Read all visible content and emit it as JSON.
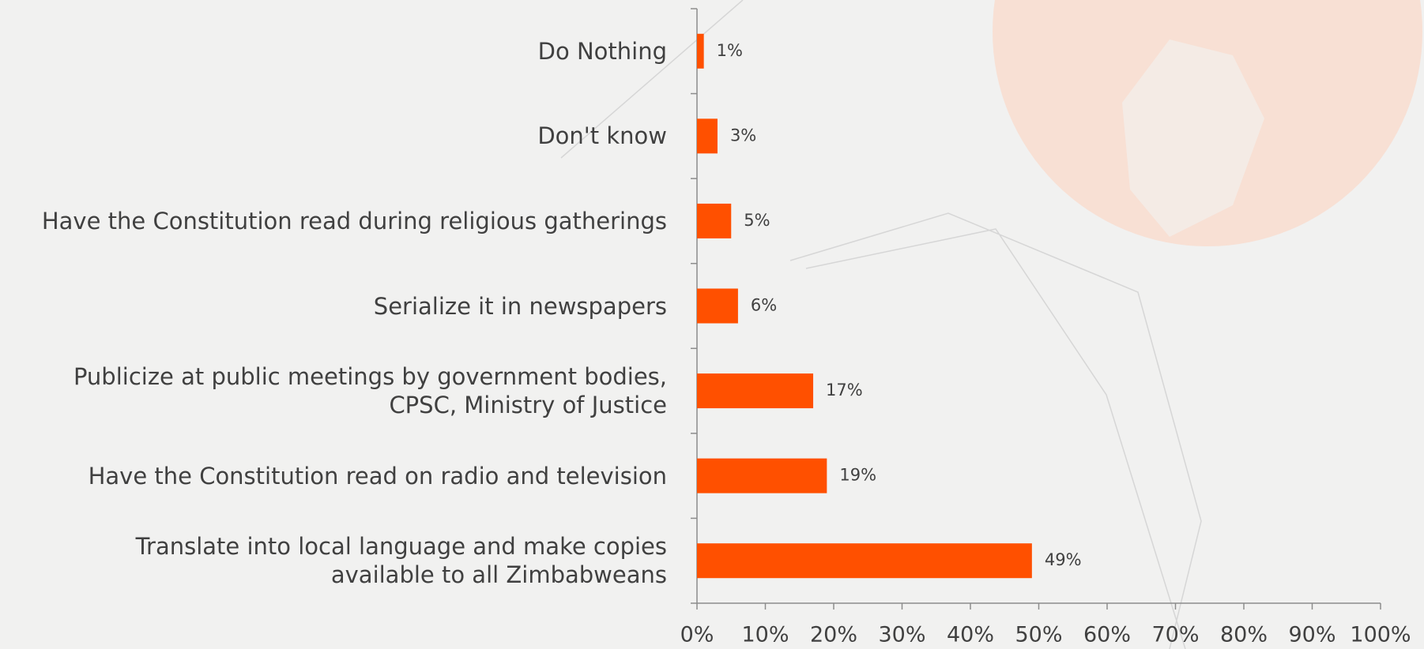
{
  "chart_data": {
    "type": "hbar",
    "categories": [
      "Do Nothing",
      "Don't know",
      "Have the Constitution read during religious gatherings",
      "Serialize it in newspapers",
      "Publicize at public meetings by government bodies,\nCPSC, Ministry of Justice",
      "Have the Constitution read on radio and television",
      "Translate into local language and make copies\navailable to all Zimbabweans"
    ],
    "values": [
      1,
      3,
      5,
      6,
      17,
      19,
      49
    ],
    "value_labels": [
      "1%",
      "3%",
      "5%",
      "6%",
      "17%",
      "19%",
      "49%"
    ],
    "color": "#ff5000",
    "xlim": [
      0,
      100
    ],
    "xticks": [
      {
        "value": 0,
        "label": "0%"
      },
      {
        "value": 10,
        "label": "10%"
      },
      {
        "value": 20,
        "label": "20%"
      },
      {
        "value": 30,
        "label": "30%"
      },
      {
        "value": 40,
        "label": "40%"
      },
      {
        "value": 50,
        "label": "50%"
      },
      {
        "value": 60,
        "label": "60%"
      },
      {
        "value": 70,
        "label": "70%"
      },
      {
        "value": 80,
        "label": "80%"
      },
      {
        "value": 90,
        "label": "90%"
      },
      {
        "value": 100,
        "label": "100%"
      }
    ]
  }
}
